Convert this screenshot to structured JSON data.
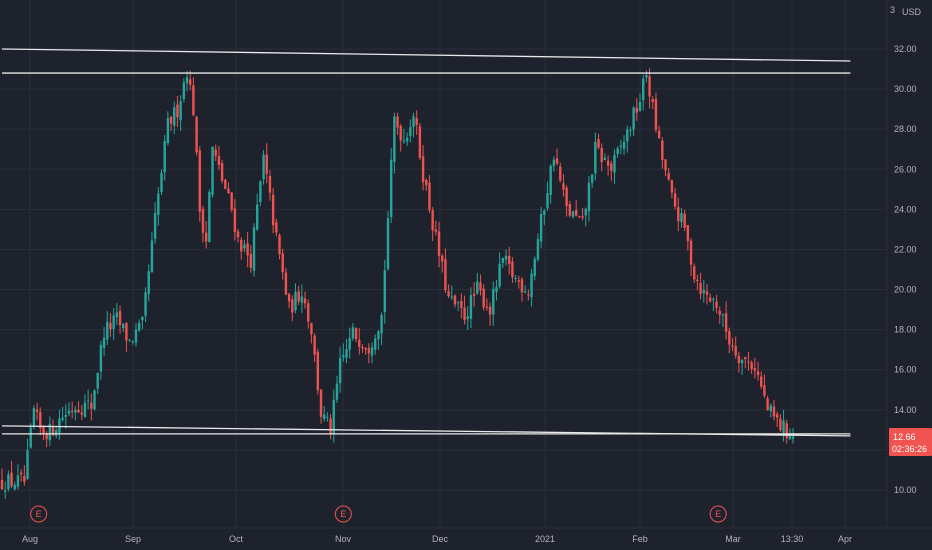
{
  "chart_data": {
    "type": "candlestick",
    "currency": "USD",
    "y_ticks": [
      10,
      12,
      14,
      16,
      18,
      20,
      22,
      24,
      26,
      28,
      30,
      32
    ],
    "y_tick_labels": [
      "10.00",
      "12.00",
      "14.00",
      "16.00",
      "18.00",
      "20.00",
      "22.00",
      "24.00",
      "26.00",
      "28.00",
      "30.00",
      "32.00"
    ],
    "ylim": [
      9.0,
      34.0
    ],
    "top_partial_tick": "3",
    "x_labels": [
      "Aug",
      "Sep",
      "Oct",
      "Nov",
      "Dec",
      "2021",
      "Feb",
      "Mar",
      "13:30",
      "Apr"
    ],
    "price_label": {
      "value": "12.66",
      "countdown": "02:36:26",
      "color": "#f05350"
    },
    "earnings_marker": "E",
    "earnings_day_index": [
      23,
      214,
      449
    ],
    "colors": {
      "up": "#26a69a",
      "down": "#ef5350",
      "line": "#e8e8e8",
      "background": "#1e222d"
    },
    "trendlines": [
      {
        "from": [
          0,
          32.0
        ],
        "to": [
          510,
          31.4
        ]
      },
      {
        "from": [
          0,
          30.8
        ],
        "to": [
          510,
          30.8
        ]
      },
      {
        "from": [
          0,
          13.2
        ],
        "to": [
          510,
          12.7
        ]
      },
      {
        "from": [
          0,
          12.8
        ],
        "to": [
          510,
          12.8
        ]
      }
    ],
    "key_points": [
      [
        0,
        10.4
      ],
      [
        14,
        10.4
      ],
      [
        20,
        13.9
      ],
      [
        24,
        13.0
      ],
      [
        30,
        12.9
      ],
      [
        38,
        13.7
      ],
      [
        46,
        14.2
      ],
      [
        56,
        14.2
      ],
      [
        64,
        17.9
      ],
      [
        72,
        18.5
      ],
      [
        80,
        17.4
      ],
      [
        88,
        18.2
      ],
      [
        96,
        23.5
      ],
      [
        104,
        28.2
      ],
      [
        110,
        29.0
      ],
      [
        116,
        31.0
      ],
      [
        120,
        29.0
      ],
      [
        124,
        24.0
      ],
      [
        128,
        22.5
      ],
      [
        132,
        27.0
      ],
      [
        138,
        25.5
      ],
      [
        144,
        24.0
      ],
      [
        148,
        22.5
      ],
      [
        156,
        21.5
      ],
      [
        164,
        26.5
      ],
      [
        172,
        22.5
      ],
      [
        180,
        19.0
      ],
      [
        188,
        20.0
      ],
      [
        194,
        18.0
      ],
      [
        200,
        13.8
      ],
      [
        206,
        13.0
      ],
      [
        212,
        16.2
      ],
      [
        220,
        17.8
      ],
      [
        230,
        17.2
      ],
      [
        238,
        18.7
      ],
      [
        246,
        28.5
      ],
      [
        252,
        27.5
      ],
      [
        258,
        28.8
      ],
      [
        264,
        25.8
      ],
      [
        272,
        22.5
      ],
      [
        280,
        19.5
      ],
      [
        290,
        18.7
      ],
      [
        298,
        20.0
      ],
      [
        306,
        19.0
      ],
      [
        314,
        21.5
      ],
      [
        322,
        20.5
      ],
      [
        330,
        20.0
      ],
      [
        336,
        22.5
      ],
      [
        346,
        26.8
      ],
      [
        354,
        24.0
      ],
      [
        364,
        23.2
      ],
      [
        372,
        27.0
      ],
      [
        382,
        26.0
      ],
      [
        392,
        27.8
      ],
      [
        400,
        29.5
      ],
      [
        404,
        30.8
      ],
      [
        412,
        27.2
      ],
      [
        420,
        24.5
      ],
      [
        428,
        23.0
      ],
      [
        434,
        20.8
      ],
      [
        440,
        19.8
      ],
      [
        448,
        19.3
      ],
      [
        456,
        17.5
      ],
      [
        464,
        16.5
      ],
      [
        472,
        16.2
      ],
      [
        480,
        14.0
      ],
      [
        488,
        13.2
      ],
      [
        496,
        12.66
      ]
    ]
  }
}
